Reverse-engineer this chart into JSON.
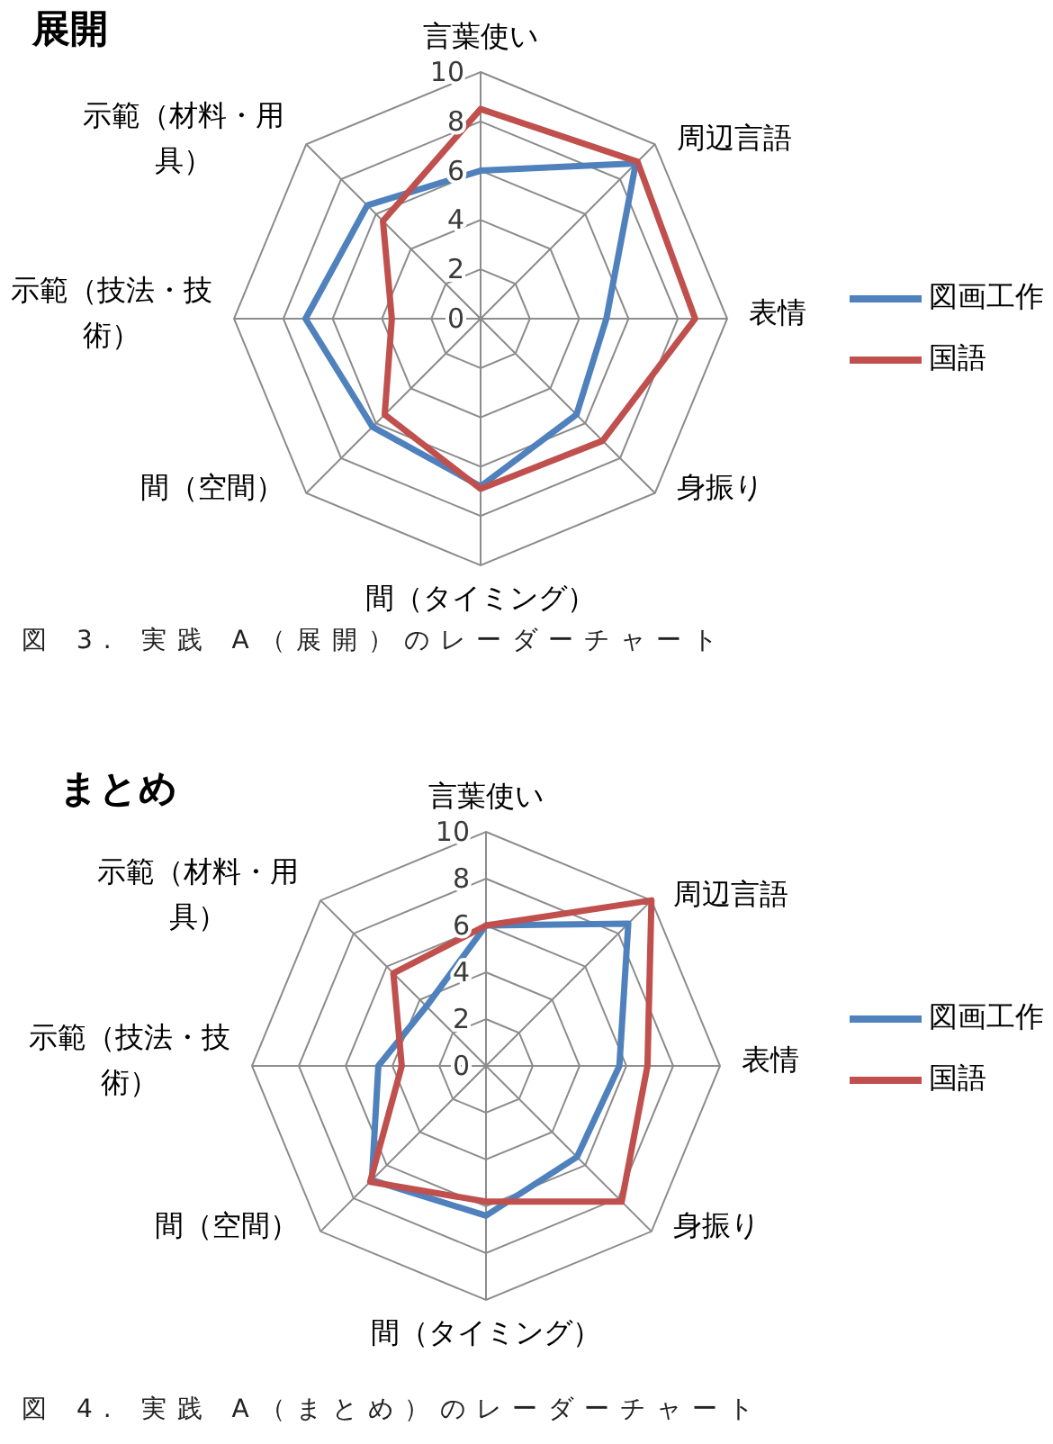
{
  "chart_data": [
    {
      "type": "radar",
      "title": "展開",
      "categories": [
        "言葉使い",
        "周辺言語",
        "表情",
        "身振り",
        "間（タイミング）",
        "間（空間）",
        "示範（技法・技術）",
        "示範（材料・用具）"
      ],
      "series": [
        {
          "name": "図画工作",
          "color": "#4f81bd",
          "values": [
            6.0,
            8.9,
            5.1,
            5.5,
            6.8,
            6.2,
            7.1,
            6.5
          ]
        },
        {
          "name": "国語",
          "color": "#c0504d",
          "values": [
            8.5,
            9.0,
            8.7,
            7.0,
            6.9,
            5.5,
            3.6,
            5.6
          ]
        }
      ],
      "ylim": [
        0,
        10
      ],
      "yticks": [
        0,
        2,
        4,
        6,
        8,
        10
      ],
      "grid": true,
      "legend": "right",
      "annotations": [
        "図 3. 実践 A（展開）のレーダーチャート"
      ]
    },
    {
      "type": "radar",
      "title": "まとめ",
      "categories": [
        "言葉使い",
        "周辺言語",
        "表情",
        "身振り",
        "間（タイミング）",
        "間（空間）",
        "示範（技法・技術）",
        "示範（材料・用具）"
      ],
      "series": [
        {
          "name": "図画工作",
          "color": "#4f81bd",
          "values": [
            6.0,
            8.6,
            5.7,
            5.5,
            6.4,
            6.9,
            4.6,
            3.6
          ]
        },
        {
          "name": "国語",
          "color": "#c0504d",
          "values": [
            6.0,
            10,
            6.9,
            8.2,
            5.8,
            7.0,
            3.6,
            5.6
          ]
        }
      ],
      "ylim": [
        0,
        10
      ],
      "yticks": [
        0,
        2,
        4,
        6,
        8,
        10
      ],
      "grid": true,
      "legend": "right",
      "annotations": [
        "図 4. 実践 A（まとめ）のレーダーチャート"
      ]
    }
  ]
}
